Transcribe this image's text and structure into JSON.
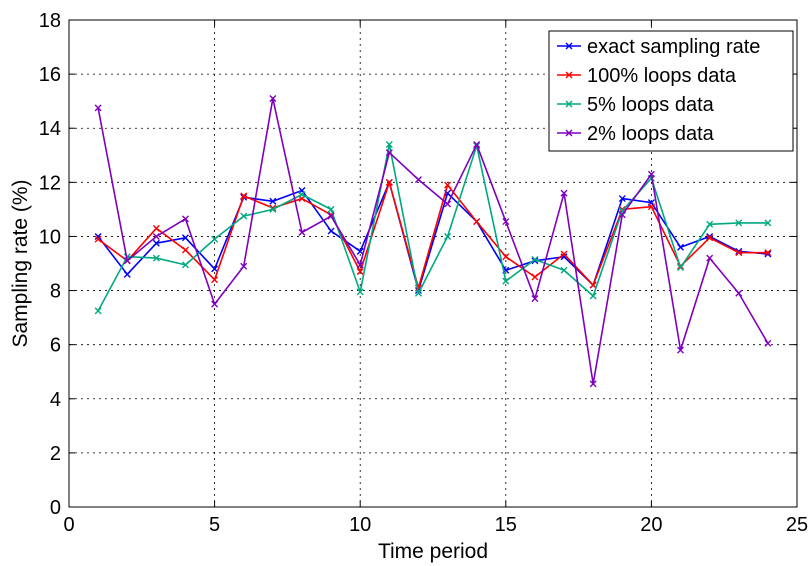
{
  "chart_data": {
    "type": "line",
    "xlabel": "Time period",
    "ylabel": "Sampling rate (%)",
    "xlim": [
      0,
      25
    ],
    "ylim": [
      0,
      18
    ],
    "xticks": [
      "0",
      "5",
      "10",
      "15",
      "20",
      "25"
    ],
    "yticks": [
      "0",
      "2",
      "4",
      "6",
      "8",
      "10",
      "12",
      "14",
      "16",
      "18"
    ],
    "grid": true,
    "legend_position": "top-right",
    "x": [
      1,
      2,
      3,
      4,
      5,
      6,
      7,
      8,
      9,
      10,
      11,
      12,
      13,
      14,
      15,
      16,
      17,
      18,
      19,
      20,
      21,
      22,
      23,
      24
    ],
    "series": [
      {
        "name": "exact sampling rate",
        "color": "#0000ff",
        "marker": "x",
        "values": [
          10.0,
          8.6,
          9.75,
          9.95,
          8.8,
          11.45,
          11.3,
          11.7,
          10.2,
          9.45,
          12.0,
          8.0,
          11.6,
          10.55,
          8.75,
          9.1,
          9.25,
          8.2,
          11.4,
          11.25,
          9.6,
          10.0,
          9.45,
          9.35
        ]
      },
      {
        "name": "100% loops data",
        "color": "#ff0000",
        "marker": "x",
        "values": [
          9.9,
          9.1,
          10.3,
          9.5,
          8.4,
          11.5,
          11.05,
          11.4,
          10.8,
          8.7,
          12.0,
          8.1,
          11.9,
          10.55,
          9.25,
          8.5,
          9.35,
          8.2,
          11.0,
          11.1,
          8.9,
          9.95,
          9.4,
          9.4
        ]
      },
      {
        "name": "5% loops data",
        "color": "#00aa80",
        "marker": "x",
        "values": [
          7.25,
          9.25,
          9.2,
          8.95,
          9.9,
          10.75,
          11.0,
          11.55,
          11.0,
          7.95,
          13.4,
          7.9,
          10.0,
          13.35,
          8.35,
          9.15,
          8.75,
          7.8,
          10.95,
          12.15,
          8.85,
          10.45,
          10.5,
          10.5
        ]
      },
      {
        "name": "2% loops data",
        "color": "#7f00bf",
        "marker": "x",
        "values": [
          14.75,
          9.1,
          10.0,
          10.65,
          7.5,
          8.9,
          15.1,
          10.15,
          10.75,
          8.95,
          13.1,
          12.1,
          11.2,
          13.4,
          10.55,
          7.7,
          11.6,
          4.55,
          10.8,
          12.3,
          5.8,
          9.2,
          7.9,
          6.05
        ]
      }
    ]
  }
}
